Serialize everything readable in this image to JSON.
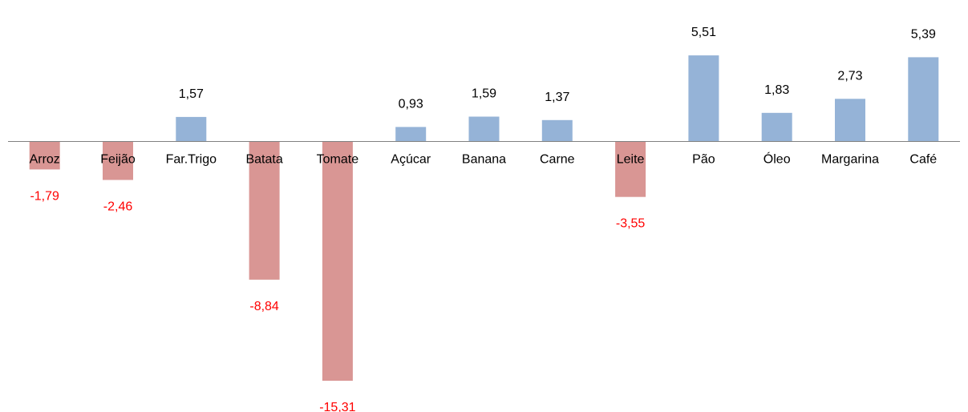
{
  "chart_data": {
    "type": "bar",
    "title": "",
    "xlabel": "",
    "ylabel": "",
    "categories": [
      "Arroz",
      "Feijão",
      "Far.Trigo",
      "Batata",
      "Tomate",
      "Açúcar",
      "Banana",
      "Carne",
      "Leite",
      "Pão",
      "Óleo",
      "Margarina",
      "Café"
    ],
    "values": [
      -1.79,
      -2.46,
      1.57,
      -8.84,
      -15.31,
      0.93,
      1.59,
      1.37,
      -3.55,
      5.51,
      1.83,
      2.73,
      5.39
    ],
    "value_labels": [
      "-1,79",
      "-2,46",
      "1,57",
      "-8,84",
      "-15,31",
      "0,93",
      "1,59",
      "1,37",
      "-3,55",
      "5,51",
      "1,83",
      "2,73",
      "5,39"
    ],
    "grid": false,
    "legend": "none",
    "colors": {
      "positive": "#95b3d7",
      "negative": "#d99694",
      "positive_label": "#000000",
      "negative_label": "#ff0000",
      "axis": "#808080"
    }
  }
}
